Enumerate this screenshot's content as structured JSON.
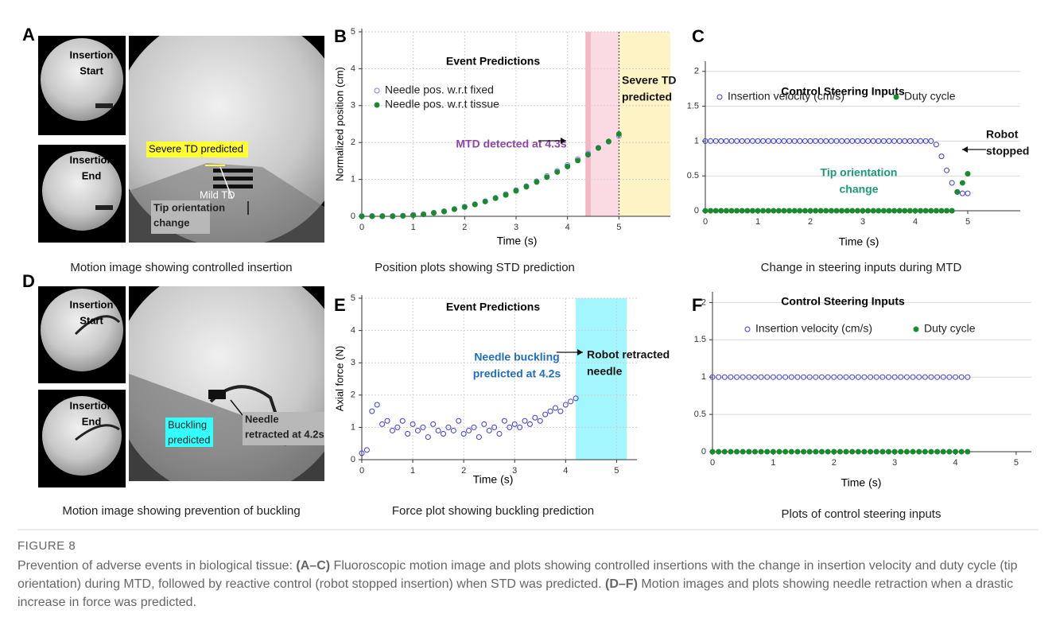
{
  "image_panels": [
    {
      "label": "A",
      "caption": "Motion image showing controlled insertion",
      "start_label": [
        "Insertion",
        "Start"
      ],
      "end_label": [
        "Insertion",
        "End"
      ],
      "callouts": [
        {
          "text": [
            "Severe TD predicted"
          ],
          "box": "#ffff33"
        },
        {
          "text": [
            "Mild TD"
          ]
        },
        {
          "text": [
            "Tip orientation",
            "change"
          ],
          "box": "#b8b8b8"
        }
      ]
    },
    {
      "label": "D",
      "caption": "Motion image showing prevention of buckling",
      "start_label": [
        "Insertion",
        "Start"
      ],
      "end_label": [
        "Insertion",
        "End"
      ],
      "callouts": [
        {
          "text": [
            "Buckling",
            "predicted"
          ],
          "box": "#33ffff"
        },
        {
          "text": [
            "Needle",
            "retracted at 4.2s"
          ],
          "box": "#b8b8b8"
        }
      ]
    }
  ],
  "chart_data": [
    {
      "type": "scatter",
      "panel_label": "B",
      "caption": "Position plots showing STD prediction",
      "title": "Event Predictions",
      "xlabel": "Time (s)",
      "ylabel": "Normalized position (cm)",
      "xlim": [
        0,
        6
      ],
      "ylim": [
        0,
        5
      ],
      "xticks": [
        0,
        1,
        2,
        3,
        4,
        5
      ],
      "yticks": [
        0,
        1,
        2,
        3,
        4,
        5
      ],
      "grid": "both",
      "legend": "upper left",
      "x": [
        0,
        0.2,
        0.4,
        0.6,
        0.8,
        1.0,
        1.2,
        1.4,
        1.6,
        1.8,
        2.0,
        2.2,
        2.4,
        2.6,
        2.8,
        3.0,
        3.2,
        3.4,
        3.6,
        3.8,
        4.0,
        4.2,
        4.4,
        4.6,
        4.8,
        5.0
      ],
      "series": [
        {
          "name": "Needle pos. w.r.t fixed",
          "color": "#7b7bf0",
          "marker": "open",
          "values": [
            0.01,
            0.01,
            0.01,
            0.01,
            0.02,
            0.04,
            0.06,
            0.1,
            0.14,
            0.2,
            0.26,
            0.33,
            0.41,
            0.5,
            0.6,
            0.71,
            0.82,
            0.95,
            1.09,
            1.23,
            1.39,
            1.55,
            1.7,
            1.86,
            2.02,
            2.18
          ]
        },
        {
          "name": "Needle pos. w.r.t tissue",
          "color": "#1a8a2e",
          "marker": "filled",
          "values": [
            0,
            0,
            0,
            0,
            0.01,
            0.03,
            0.05,
            0.09,
            0.13,
            0.19,
            0.25,
            0.32,
            0.4,
            0.49,
            0.58,
            0.69,
            0.8,
            0.93,
            1.06,
            1.2,
            1.35,
            1.51,
            1.67,
            1.85,
            2.03,
            2.23
          ]
        }
      ],
      "spans": [
        {
          "from": 4.35,
          "to": 5,
          "color": "#fadbe3"
        },
        {
          "from": 4.35,
          "to": 4.45,
          "color": "#f4b6c5"
        },
        {
          "from": 5,
          "to": 6,
          "color": "#fdf3c5"
        }
      ],
      "vlines": [
        5
      ],
      "annotations": [
        {
          "text": [
            "MTD detected at 4.3s"
          ],
          "color": "#8e44ad"
        },
        {
          "text": [
            "Severe TD",
            "predicted"
          ],
          "color": "#111111"
        }
      ]
    },
    {
      "type": "scatter",
      "panel_label": "C",
      "caption": "Change in steering inputs during MTD",
      "title": "Control Steering Inputs",
      "xlabel": "Time (s)",
      "xlim": [
        0,
        6
      ],
      "ylim": [
        0,
        2.1
      ],
      "xticks": [
        0,
        1,
        2,
        3,
        4,
        5
      ],
      "yticks": [
        0,
        0.5,
        1,
        1.5,
        2
      ],
      "grid": "y",
      "legend": "upper center",
      "x": [
        0,
        0.1,
        0.2,
        0.3,
        0.4,
        0.5,
        0.6,
        0.7,
        0.8,
        0.9,
        1.0,
        1.1,
        1.2,
        1.3,
        1.4,
        1.5,
        1.6,
        1.7,
        1.8,
        1.9,
        2.0,
        2.1,
        2.2,
        2.3,
        2.4,
        2.5,
        2.6,
        2.7,
        2.8,
        2.9,
        3.0,
        3.1,
        3.2,
        3.3,
        3.4,
        3.5,
        3.6,
        3.7,
        3.8,
        3.9,
        4.0,
        4.1,
        4.2,
        4.3,
        4.4,
        4.5,
        4.6,
        4.7,
        4.8,
        4.9,
        5.0
      ],
      "series": [
        {
          "name": "Insertion velocity (cm/s)",
          "color": "#3b3bd6",
          "marker": "open",
          "values": [
            1,
            1,
            1,
            1,
            1,
            1,
            1,
            1,
            1,
            1,
            1,
            1,
            1,
            1,
            1,
            1,
            1,
            1,
            1,
            1,
            1,
            1,
            1,
            1,
            1,
            1,
            1,
            1,
            1,
            1,
            1,
            1,
            1,
            1,
            1,
            1,
            1,
            1,
            1,
            1,
            1,
            1,
            1,
            1,
            0.95,
            0.78,
            0.58,
            0.4,
            0.27,
            0.25,
            0.25
          ]
        },
        {
          "name": "Duty cycle",
          "color": "#1a8a2e",
          "marker": "filled",
          "values": [
            0,
            0,
            0,
            0,
            0,
            0,
            0,
            0,
            0,
            0,
            0,
            0,
            0,
            0,
            0,
            0,
            0,
            0,
            0,
            0,
            0,
            0,
            0,
            0,
            0,
            0,
            0,
            0,
            0,
            0,
            0,
            0,
            0,
            0,
            0,
            0,
            0,
            0,
            0,
            0,
            0,
            0,
            0,
            0,
            0,
            0,
            0,
            0,
            0.27,
            0.4,
            0.53
          ]
        }
      ],
      "annotations": [
        {
          "text": [
            "Tip orientation",
            "change"
          ],
          "color": "#1a9a7a"
        },
        {
          "text": [
            "Robot",
            "stopped"
          ],
          "color": "#111111"
        }
      ]
    },
    {
      "type": "scatter",
      "panel_label": "E",
      "caption": "Force plot showing buckling prediction",
      "title": "Event Predictions",
      "xlabel": "Time (s)",
      "ylabel": "Axial force (N)",
      "xlim": [
        0,
        5.4
      ],
      "ylim": [
        0,
        5
      ],
      "xticks": [
        0,
        1,
        2,
        3,
        4,
        5
      ],
      "yticks": [
        0,
        1,
        2,
        3,
        4,
        5
      ],
      "grid": "both",
      "x": [
        0,
        0.1,
        0.2,
        0.3,
        0.4,
        0.5,
        0.6,
        0.7,
        0.8,
        0.9,
        1.0,
        1.1,
        1.2,
        1.3,
        1.4,
        1.5,
        1.6,
        1.7,
        1.8,
        1.9,
        2.0,
        2.1,
        2.2,
        2.3,
        2.4,
        2.5,
        2.6,
        2.7,
        2.8,
        2.9,
        3.0,
        3.1,
        3.2,
        3.3,
        3.4,
        3.5,
        3.6,
        3.7,
        3.8,
        3.9,
        4.0,
        4.1,
        4.2
      ],
      "series": [
        {
          "color": "#3b3bd6",
          "marker": "open",
          "values": [
            0.2,
            0.3,
            1.5,
            1.7,
            1.1,
            1.2,
            0.9,
            1.0,
            1.2,
            0.8,
            1.1,
            0.9,
            1.0,
            0.7,
            1.1,
            0.9,
            0.8,
            1.0,
            0.9,
            1.2,
            0.8,
            0.9,
            1.0,
            0.7,
            1.1,
            0.9,
            1.0,
            0.8,
            1.2,
            1.0,
            1.1,
            1.0,
            1.2,
            1.1,
            1.3,
            1.2,
            1.4,
            1.5,
            1.6,
            1.5,
            1.7,
            1.8,
            1.9
          ]
        }
      ],
      "spans": [
        {
          "from": 4.2,
          "to": 5.2,
          "color": "#a3f6fb"
        }
      ],
      "annotations": [
        {
          "text": [
            "Needle buckling",
            "predicted at 4.2s"
          ],
          "color": "#1f6fbf"
        },
        {
          "text": [
            "Robot retracted",
            "needle"
          ],
          "color": "#111111"
        }
      ]
    },
    {
      "type": "scatter",
      "panel_label": "F",
      "caption": "Plots of control steering inputs",
      "title": "Control Steering Inputs",
      "xlabel": "Time (s)",
      "xlim": [
        0,
        5.25
      ],
      "ylim": [
        0,
        2.1
      ],
      "xticks": [
        0,
        1,
        2,
        3,
        4,
        5
      ],
      "yticks": [
        0,
        0.5,
        1,
        1.5,
        2
      ],
      "grid": "y",
      "legend": "upper center",
      "x": [
        0,
        0.1,
        0.2,
        0.3,
        0.4,
        0.5,
        0.6,
        0.7,
        0.8,
        0.9,
        1.0,
        1.1,
        1.2,
        1.3,
        1.4,
        1.5,
        1.6,
        1.7,
        1.8,
        1.9,
        2.0,
        2.1,
        2.2,
        2.3,
        2.4,
        2.5,
        2.6,
        2.7,
        2.8,
        2.9,
        3.0,
        3.1,
        3.2,
        3.3,
        3.4,
        3.5,
        3.6,
        3.7,
        3.8,
        3.9,
        4.0,
        4.1,
        4.2
      ],
      "series": [
        {
          "name": "Insertion velocity (cm/s)",
          "color": "#3b3bd6",
          "marker": "open",
          "values": [
            1,
            1,
            1,
            1,
            1,
            1,
            1,
            1,
            1,
            1,
            1,
            1,
            1,
            1,
            1,
            1,
            1,
            1,
            1,
            1,
            1,
            1,
            1,
            1,
            1,
            1,
            1,
            1,
            1,
            1,
            1,
            1,
            1,
            1,
            1,
            1,
            1,
            1,
            1,
            1,
            1,
            1,
            1
          ]
        },
        {
          "name": "Duty cycle",
          "color": "#1a8a2e",
          "marker": "filled",
          "values": [
            0,
            0,
            0,
            0,
            0,
            0,
            0,
            0,
            0,
            0,
            0,
            0,
            0,
            0,
            0,
            0,
            0,
            0,
            0,
            0,
            0,
            0,
            0,
            0,
            0,
            0,
            0,
            0,
            0,
            0,
            0,
            0,
            0,
            0,
            0,
            0,
            0,
            0,
            0,
            0,
            0,
            0,
            0
          ]
        }
      ]
    }
  ],
  "figure": {
    "label": "FIGURE 8",
    "caption": [
      {
        "text": "Prevention of adverse events in biological tissue: "
      },
      {
        "text": "(A–C)",
        "bold": true
      },
      {
        "text": " Fluoroscopic motion image and plots showing controlled insertions with the change in insertion velocity and duty cycle (tip orientation) during MTD, followed by reactive control (robot stopped insertion) when STD was predicted. "
      },
      {
        "text": "(D–F)",
        "bold": true
      },
      {
        "text": " Motion images and plots showing needle retraction when a drastic increase in force was predicted."
      }
    ]
  }
}
